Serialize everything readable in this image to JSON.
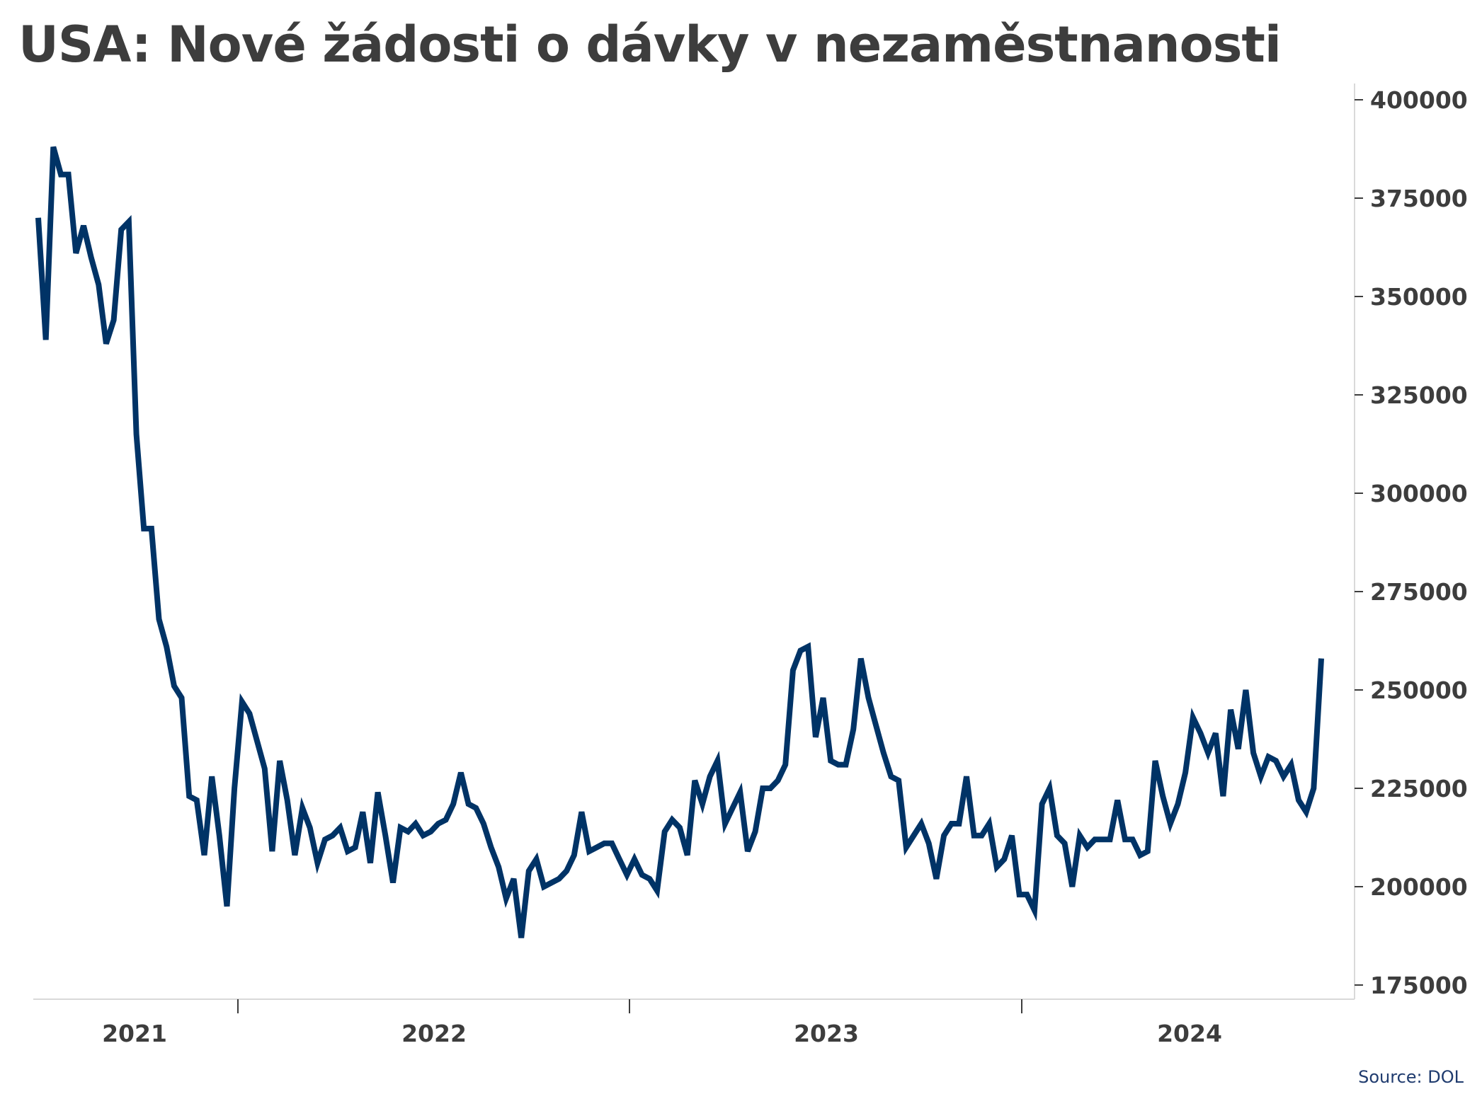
{
  "title": "USA: Nové žádosti o dávky v nezaměstnanosti",
  "source": "Source: DOL",
  "colors": {
    "line": "#003366",
    "axis": "#d9d9d9",
    "text": "#3d3d3d",
    "source": "#1f3b6e"
  },
  "chart_data": {
    "type": "line",
    "title": "USA: Nové žádosti o dávky v nezaměstnanosti",
    "xlabel": "",
    "ylabel": "",
    "y_axis_position": "right",
    "ylim": [
      170000,
      403000
    ],
    "y_ticks": [
      175000,
      200000,
      225000,
      250000,
      275000,
      300000,
      325000,
      350000,
      375000,
      400000
    ],
    "x_labels": [
      "2021",
      "2022",
      "2023",
      "2024"
    ],
    "grid": false,
    "legend": "none",
    "series": [
      {
        "values": [
          370000,
          339000,
          388000,
          381000,
          381000,
          361000,
          368000,
          360000,
          353000,
          338000,
          344000,
          367000,
          369000,
          315000,
          291000,
          291000,
          268000,
          261000,
          251000,
          248000,
          223000,
          222000,
          208000,
          228000,
          213000,
          195000,
          225000,
          247000,
          244000,
          237000,
          230000,
          209000,
          232000,
          222000,
          208000,
          220000,
          215000,
          206000,
          212000,
          213000,
          215000,
          209000,
          210000,
          219000,
          206000,
          224000,
          213000,
          201000,
          215000,
          214000,
          216000,
          213000,
          214000,
          216000,
          217000,
          221000,
          229000,
          221000,
          220000,
          216000,
          210000,
          205000,
          197000,
          202000,
          187000,
          204000,
          207000,
          200000,
          201000,
          202000,
          204000,
          208000,
          219000,
          209000,
          210000,
          211000,
          211000,
          207000,
          203000,
          207000,
          203000,
          202000,
          199000,
          214000,
          217000,
          215000,
          208000,
          227000,
          221000,
          228000,
          232000,
          216000,
          220000,
          224000,
          209000,
          214000,
          225000,
          225000,
          227000,
          231000,
          255000,
          260000,
          261000,
          238000,
          248000,
          232000,
          231000,
          231000,
          240000,
          258000,
          248000,
          241000,
          234000,
          228000,
          227000,
          210000,
          213000,
          216000,
          211000,
          202000,
          213000,
          216000,
          216000,
          228000,
          213000,
          213000,
          216000,
          205000,
          207000,
          213000,
          198000,
          198000,
          194000,
          221000,
          225000,
          213000,
          211000,
          200000,
          213000,
          210000,
          212000,
          212000,
          212000,
          222000,
          212000,
          212000,
          208000,
          209000,
          232000,
          223000,
          216000,
          221000,
          229000,
          243000,
          239000,
          234000,
          239000,
          223000,
          245000,
          235000,
          250000,
          234000,
          228000,
          233000,
          232000,
          228000,
          231000,
          222000,
          219000,
          225000,
          258000
        ]
      }
    ]
  }
}
